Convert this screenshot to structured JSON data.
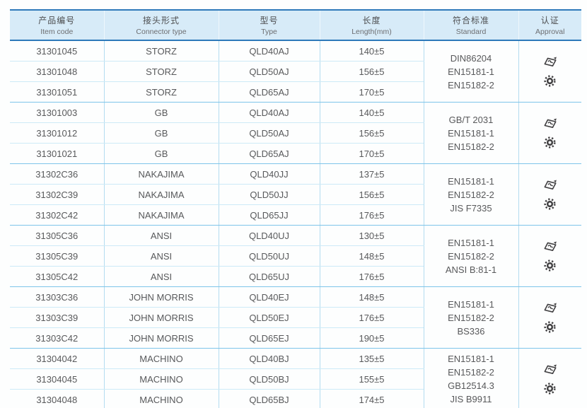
{
  "header": {
    "columns": [
      {
        "zh": "产品编号",
        "en": "Item code"
      },
      {
        "zh": "接头形式",
        "en": "Connector type"
      },
      {
        "zh": "型号",
        "en": "Type"
      },
      {
        "zh": "长度",
        "en": "Length(mm)"
      },
      {
        "zh": "符合标准",
        "en": "Standard"
      },
      {
        "zh": "认证",
        "en": "Approval"
      }
    ]
  },
  "groups": [
    {
      "connector": "STORZ",
      "rows": [
        {
          "item_code": "31301045",
          "type": "QLD40AJ",
          "length": "140±5"
        },
        {
          "item_code": "31301048",
          "type": "QLD50AJ",
          "length": "156±5"
        },
        {
          "item_code": "31301051",
          "type": "QLD65AJ",
          "length": "170±5"
        }
      ],
      "standards": [
        "DIN86204",
        "EN15181-1",
        "EN15182-2"
      ],
      "approval_icons": [
        "certificate-stamp-icon",
        "wheelmark-gear-icon"
      ]
    },
    {
      "connector": "GB",
      "rows": [
        {
          "item_code": "31301003",
          "type": "QLD40AJ",
          "length": "140±5"
        },
        {
          "item_code": "31301012",
          "type": "QLD50AJ",
          "length": "156±5"
        },
        {
          "item_code": "31301021",
          "type": "QLD65AJ",
          "length": "170±5"
        }
      ],
      "standards": [
        "GB/T 2031",
        "EN15181-1",
        "EN15182-2"
      ],
      "approval_icons": [
        "certificate-stamp-icon",
        "wheelmark-gear-icon"
      ]
    },
    {
      "connector": "NAKAJIMA",
      "rows": [
        {
          "item_code": "31302C36",
          "type": "QLD40JJ",
          "length": "137±5"
        },
        {
          "item_code": "31302C39",
          "type": "QLD50JJ",
          "length": "156±5"
        },
        {
          "item_code": "31302C42",
          "type": "QLD65JJ",
          "length": "176±5"
        }
      ],
      "standards": [
        "EN15181-1",
        "EN15182-2",
        "JIS F7335"
      ],
      "approval_icons": [
        "certificate-stamp-icon",
        "wheelmark-gear-icon"
      ]
    },
    {
      "connector": "ANSI",
      "rows": [
        {
          "item_code": "31305C36",
          "type": "QLD40UJ",
          "length": "130±5"
        },
        {
          "item_code": "31305C39",
          "type": "QLD50UJ",
          "length": "148±5"
        },
        {
          "item_code": "31305C42",
          "type": "QLD65UJ",
          "length": "176±5"
        }
      ],
      "standards": [
        "EN15181-1",
        "EN15182-2",
        "ANSI B:81-1"
      ],
      "approval_icons": [
        "certificate-stamp-icon",
        "wheelmark-gear-icon"
      ]
    },
    {
      "connector": "JOHN MORRIS",
      "rows": [
        {
          "item_code": "31303C36",
          "type": "QLD40EJ",
          "length": "148±5"
        },
        {
          "item_code": "31303C39",
          "type": "QLD50EJ",
          "length": "176±5"
        },
        {
          "item_code": "31303C42",
          "type": "QLD65EJ",
          "length": "190±5"
        }
      ],
      "standards": [
        "EN15181-1",
        "EN15182-2",
        "BS336"
      ],
      "approval_icons": [
        "certificate-stamp-icon",
        "wheelmark-gear-icon"
      ]
    },
    {
      "connector": "MACHINO",
      "rows": [
        {
          "item_code": "31304042",
          "type": "QLD40BJ",
          "length": "135±5"
        },
        {
          "item_code": "31304045",
          "type": "QLD50BJ",
          "length": "155±5"
        },
        {
          "item_code": "31304048",
          "type": "QLD65BJ",
          "length": "174±5"
        }
      ],
      "standards": [
        "EN15181-1",
        "EN15182-2",
        "GB12514.3",
        "JIS B9911"
      ],
      "approval_icons": [
        "certificate-stamp-icon",
        "wheelmark-gear-icon"
      ]
    }
  ],
  "colors": {
    "header_bg": "#d7ebf8",
    "border_heavy": "#2e79ba",
    "border_group": "#7ec5ea",
    "border_row": "#cdeaf7",
    "border_col": "#b3dcf0",
    "text": "#58595b",
    "icon": "#414042"
  }
}
